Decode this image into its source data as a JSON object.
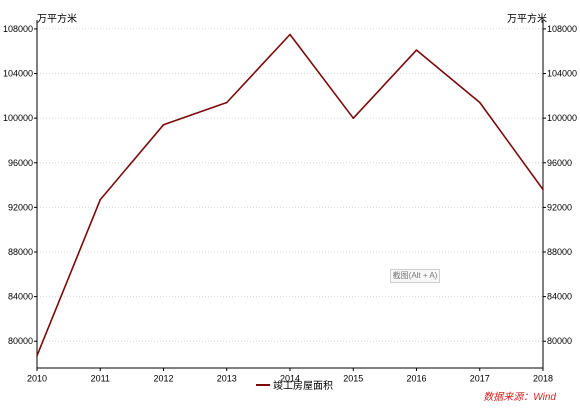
{
  "chart_data": {
    "type": "line",
    "title": "",
    "unit_left": "万平方米",
    "unit_right": "万平方米",
    "x": [
      "2010",
      "2011",
      "2012",
      "2013",
      "2014",
      "2015",
      "2016",
      "2017",
      "2018"
    ],
    "series": [
      {
        "name": "竣工房屋面积",
        "values": [
          78700,
          92700,
          99400,
          101400,
          107500,
          100000,
          106100,
          101400,
          93600
        ],
        "color": "#7b0a0a"
      }
    ],
    "yticks": [
      80000,
      84000,
      88000,
      92000,
      96000,
      100000,
      104000,
      108000
    ],
    "ylim": [
      77600,
      108800
    ],
    "grid": "horizontal-dotted",
    "legend": "bottom-center",
    "dual_y_axis": true
  },
  "source": "数据来源：Wind",
  "watermark": "截图(Alt + A)"
}
